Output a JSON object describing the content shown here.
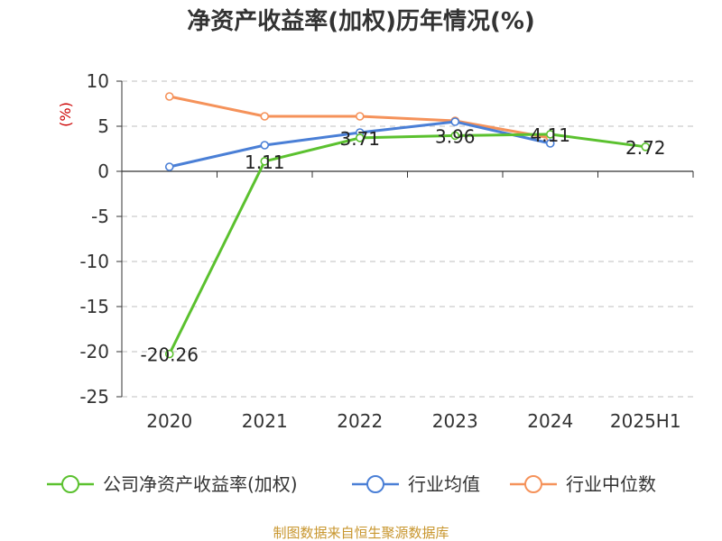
{
  "chart_data": {
    "type": "line",
    "title": "净资产收益率(加权)历年情况(%)",
    "ylabel": "(%)",
    "categories": [
      "2020",
      "2021",
      "2022",
      "2023",
      "2024",
      "2025H1"
    ],
    "ylim": [
      -25,
      10
    ],
    "yticks": [
      10,
      5,
      0,
      -5,
      -10,
      -15,
      -20,
      -25
    ],
    "grid": true,
    "legend_position": "bottom",
    "series": [
      {
        "name": "公司净资产收益率(加权)",
        "color": "#5bc12f",
        "values": [
          -20.26,
          1.11,
          3.71,
          3.96,
          4.11,
          2.72
        ],
        "labels": [
          "-20.26",
          "1.11",
          "3.71",
          "3.96",
          "4.11",
          "2.72"
        ]
      },
      {
        "name": "行业均值",
        "color": "#4a7fd6",
        "values": [
          0.5,
          2.9,
          4.3,
          5.5,
          3.1,
          null
        ]
      },
      {
        "name": "行业中位数",
        "color": "#f5925a",
        "values": [
          8.3,
          6.1,
          6.1,
          5.6,
          3.7,
          null
        ]
      }
    ]
  },
  "source": "制图数据来自恒生聚源数据库"
}
